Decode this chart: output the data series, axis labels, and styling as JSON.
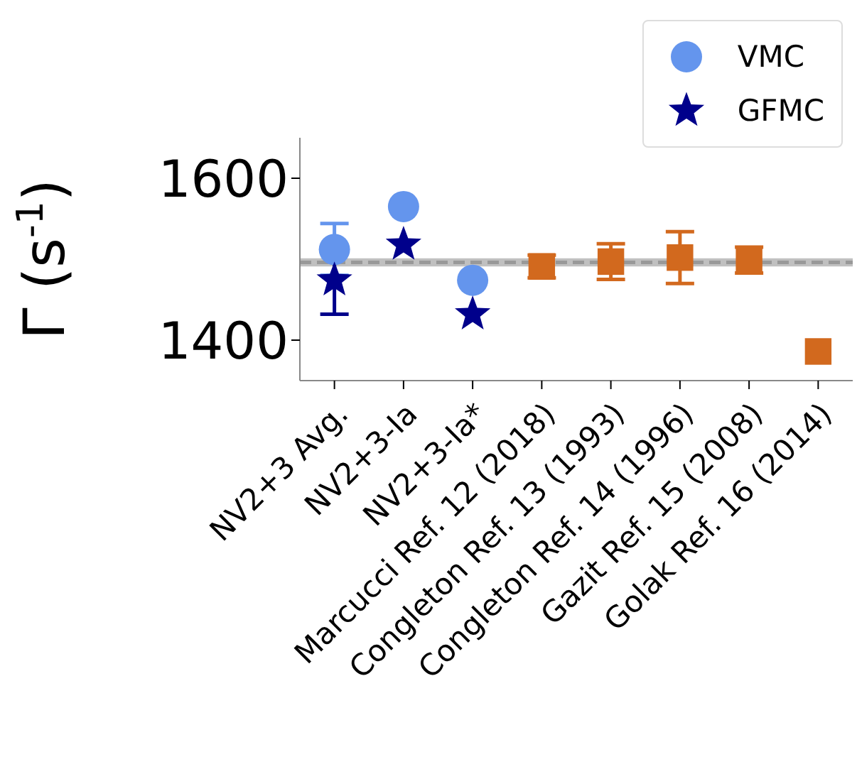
{
  "chart_data": {
    "type": "scatter",
    "ylabel": "Γ (s$^{-1}$)",
    "categories": [
      "NV2+3 Avg.",
      "NV2+3-Ia",
      "NV2+3-Ia*",
      "Marcucci Ref. 12 (2018)",
      "Congleton Ref. 13 (1993)",
      "Congleton Ref. 14 (1996)",
      "Gazit Ref. 15 (2008)",
      "Golak Ref. 16 (2014)"
    ],
    "series": [
      {
        "name": "VMC",
        "color": "#6495ed",
        "marker": "circle",
        "values": [
          1512,
          1565,
          1474,
          null,
          null,
          null,
          null,
          null
        ],
        "errors": [
          32,
          null,
          null,
          null,
          null,
          null,
          null,
          null
        ]
      },
      {
        "name": "GFMC",
        "color": "#00008b",
        "marker": "star",
        "values": [
          1474,
          1518,
          1432,
          null,
          null,
          null,
          null,
          null
        ],
        "errors": [
          42,
          null,
          null,
          null,
          null,
          null,
          null,
          null
        ]
      },
      {
        "color": "#d2691e",
        "marker": "square",
        "values": [
          null,
          null,
          null,
          1491,
          1497,
          1502,
          1499,
          1386
        ],
        "errors": [
          null,
          null,
          null,
          14,
          22,
          32,
          16,
          null
        ]
      }
    ],
    "ylim": [
      1350,
      1650
    ],
    "yticks": [
      1400,
      1600
    ],
    "bands": [
      {
        "axis": "y",
        "from": 1491,
        "to": 1501,
        "color": "#c0c0c0"
      }
    ],
    "ref_lines": [
      {
        "axis": "y",
        "value": 1496,
        "color": "#999999",
        "line_style": "dashed"
      }
    ],
    "legend": "top right",
    "grid": false
  }
}
